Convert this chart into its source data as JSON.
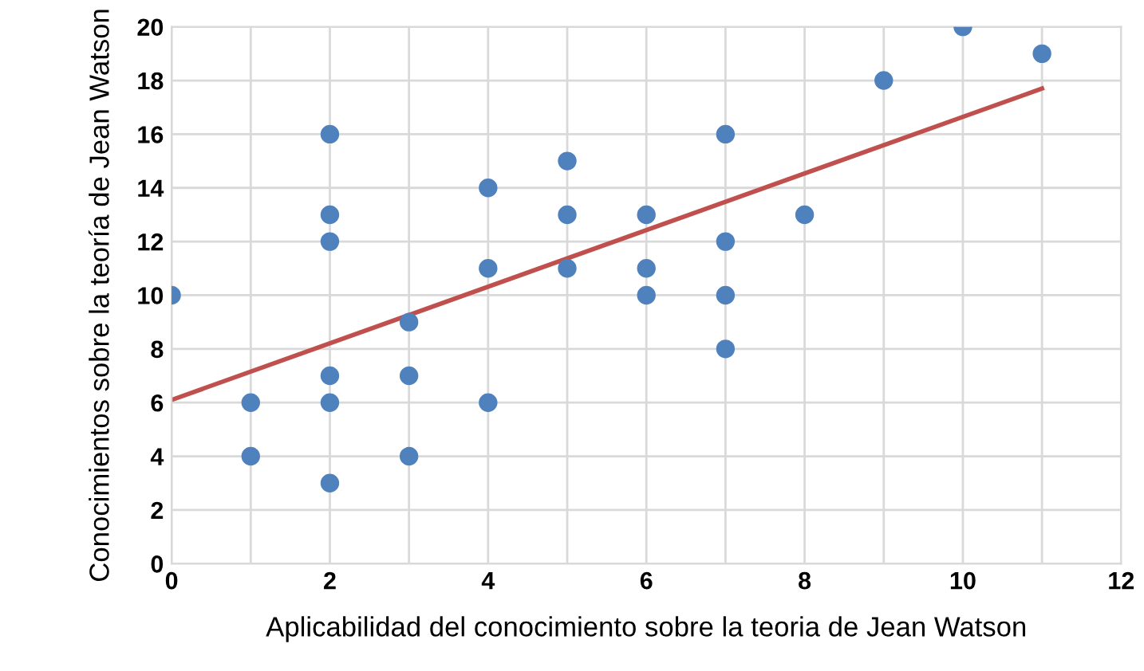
{
  "chart_data": {
    "type": "scatter",
    "xlabel": "Aplicabilidad del conocimiento sobre la teoria de Jean Watson",
    "ylabel": "Conocimientos sobre la teoría de Jean Watson",
    "series": [
      {
        "color": "#4f81bd",
        "marker": "circle",
        "x": [
          0,
          1,
          1,
          2,
          2,
          2,
          2,
          2,
          2,
          3,
          3,
          3,
          4,
          4,
          4,
          5,
          5,
          5,
          6,
          6,
          6,
          7,
          7,
          7,
          7,
          8,
          9,
          10,
          11
        ],
        "values": [
          10,
          6,
          4,
          16,
          13,
          12,
          7,
          6,
          3,
          9,
          7,
          4,
          14,
          11,
          6,
          15,
          13,
          11,
          13,
          11,
          10,
          16,
          12,
          10,
          8,
          13,
          18,
          20,
          19
        ]
      },
      {
        "type": "line",
        "color": "#c0504d",
        "marker": "none",
        "line_style": "solid",
        "x": [
          0,
          11
        ],
        "values": [
          6.1,
          17.7
        ]
      }
    ],
    "xlim": [
      0,
      12
    ],
    "ylim": [
      0,
      20
    ],
    "xticks": [
      0,
      {
        "value": 1,
        "label": null
      },
      2,
      {
        "value": 3,
        "label": null
      },
      4,
      {
        "value": 5,
        "label": null
      },
      6,
      {
        "value": 7,
        "label": null
      },
      8,
      {
        "value": 9,
        "label": null
      },
      10,
      {
        "value": 11,
        "label": null
      },
      12
    ],
    "yticks": [
      0,
      2,
      4,
      6,
      8,
      10,
      12,
      14,
      16,
      18,
      20
    ],
    "grid": true
  }
}
